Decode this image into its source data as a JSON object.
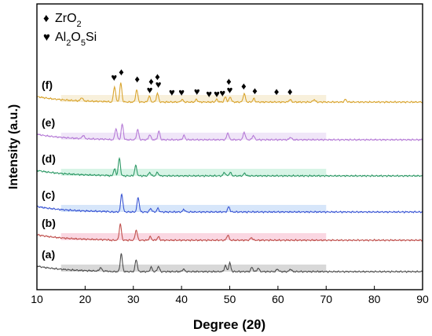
{
  "chart_data": {
    "type": "line",
    "xlabel": "Degree (2θ)",
    "ylabel": "Intensity (a.u.)",
    "xlim": [
      10,
      90
    ],
    "x_ticks": [
      10,
      20,
      30,
      40,
      50,
      60,
      70,
      80,
      90
    ],
    "y_ticks_shown": false,
    "grid": false,
    "legend": {
      "placement": "top-left",
      "entries": [
        {
          "symbol": "♦",
          "label_parts": [
            "ZrO",
            "2",
            ""
          ]
        },
        {
          "symbol": "♥",
          "label_parts": [
            "Al",
            "2",
            "O",
            "5",
            "Si"
          ]
        }
      ]
    },
    "series": [
      {
        "name": "(a)",
        "color": "#4d4d4d",
        "band_color": "#c8c8c8",
        "offset": 0,
        "peaks": [
          [
            23.2,
            0.4
          ],
          [
            27.5,
            2.1
          ],
          [
            30.6,
            1.4
          ],
          [
            33.7,
            0.5
          ],
          [
            35.2,
            0.6
          ],
          [
            40.4,
            0.3
          ],
          [
            49.1,
            0.7
          ],
          [
            50.0,
            1.0
          ],
          [
            54.6,
            0.5
          ],
          [
            55.9,
            0.4
          ],
          [
            59.9,
            0.3
          ],
          [
            62.6,
            0.3
          ]
        ]
      },
      {
        "name": "(b)",
        "color": "#c0504d",
        "band_color": "#f8c6d6",
        "offset": 1,
        "peaks": [
          [
            27.3,
            1.9
          ],
          [
            30.6,
            1.2
          ],
          [
            33.5,
            0.4
          ],
          [
            35.2,
            0.4
          ],
          [
            49.6,
            0.6
          ],
          [
            54.5,
            0.3
          ]
        ]
      },
      {
        "name": "(c)",
        "color": "#3a56d4",
        "band_color": "#c6dcf8",
        "offset": 2,
        "peaks": [
          [
            27.6,
            2.1
          ],
          [
            31.0,
            1.7
          ],
          [
            33.6,
            0.4
          ],
          [
            35.1,
            0.4
          ],
          [
            40.5,
            0.3
          ],
          [
            49.8,
            0.6
          ]
        ]
      },
      {
        "name": "(d)",
        "color": "#2e9966",
        "band_color": "#c6f0dc",
        "offset": 3,
        "peaks": [
          [
            26.1,
            0.8
          ],
          [
            27.1,
            2.0
          ],
          [
            30.5,
            1.2
          ],
          [
            33.4,
            0.4
          ],
          [
            35.0,
            0.4
          ],
          [
            48.9,
            0.4
          ],
          [
            50.1,
            0.4
          ],
          [
            53.1,
            0.3
          ]
        ]
      },
      {
        "name": "(e)",
        "color": "#b57ad6",
        "band_color": "#eadcf5",
        "offset": 4,
        "peaks": [
          [
            19.6,
            0.4
          ],
          [
            26.4,
            1.3
          ],
          [
            27.7,
            1.8
          ],
          [
            30.9,
            1.2
          ],
          [
            33.4,
            0.6
          ],
          [
            35.3,
            1.0
          ],
          [
            40.5,
            0.5
          ],
          [
            49.6,
            0.8
          ],
          [
            53.0,
            0.9
          ],
          [
            54.9,
            0.5
          ],
          [
            62.6,
            0.3
          ]
        ]
      },
      {
        "name": "(f)",
        "color": "#d9a530",
        "band_color": "#f5e9cc",
        "offset": 5,
        "peaks": [
          [
            19.3,
            0.4
          ],
          [
            26.1,
            1.8
          ],
          [
            27.4,
            2.2
          ],
          [
            30.7,
            1.4
          ],
          [
            33.3,
            0.7
          ],
          [
            35.0,
            1.0
          ],
          [
            40.1,
            0.3
          ],
          [
            43.1,
            0.3
          ],
          [
            47.3,
            0.3
          ],
          [
            49.1,
            0.6
          ],
          [
            50.1,
            0.6
          ],
          [
            53.0,
            1.0
          ],
          [
            55.0,
            0.4
          ],
          [
            62.5,
            0.3
          ],
          [
            67.5,
            0.3
          ],
          [
            74.0,
            0.3
          ]
        ]
      }
    ],
    "markers_above_f": {
      "diamond": [
        27.5,
        30.8,
        33.7,
        35.0,
        49.8,
        52.9,
        55.2,
        59.7,
        62.5
      ],
      "heart": [
        26.0,
        33.4,
        35.2,
        38.0,
        40.0,
        43.2,
        45.7,
        47.3,
        48.5,
        50.0
      ]
    }
  }
}
